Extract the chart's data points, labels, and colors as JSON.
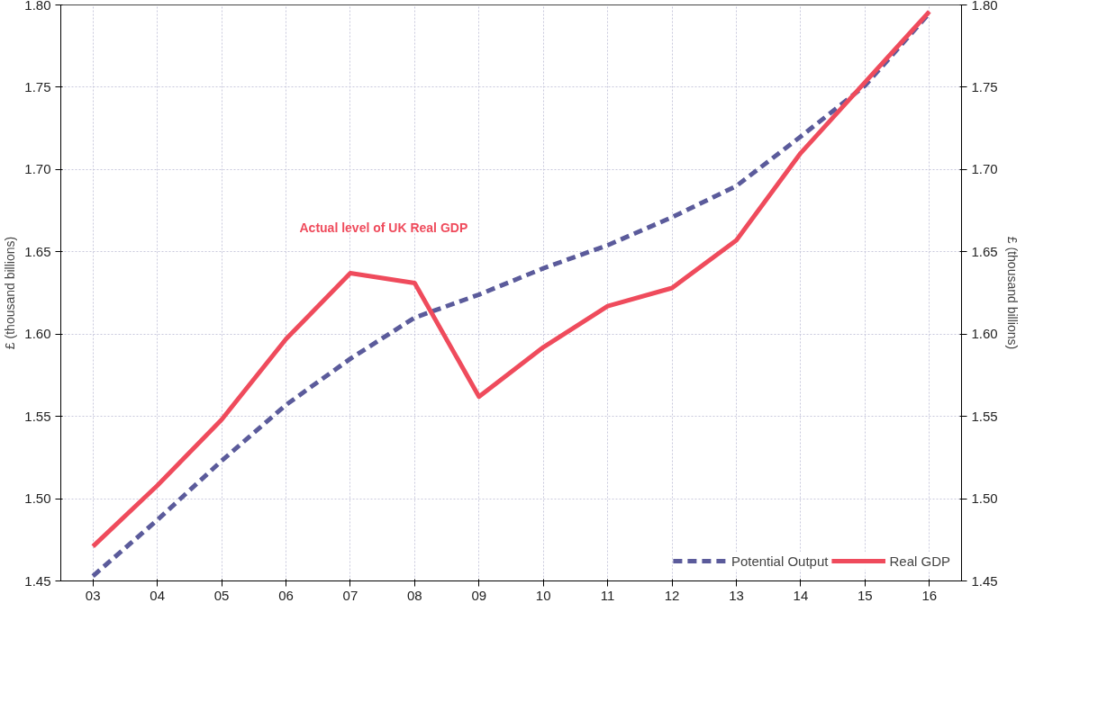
{
  "chart_data": {
    "type": "line",
    "ylabel": "£ (thousand billions)",
    "y2label": "£ (thousand billions)",
    "categories": [
      "03",
      "04",
      "05",
      "06",
      "07",
      "08",
      "09",
      "10",
      "11",
      "12",
      "13",
      "14",
      "15",
      "16"
    ],
    "series": [
      {
        "name": "Potential Output",
        "color": "#5b5b9b",
        "line_style": "dashed",
        "values": [
          1.453,
          1.487,
          1.523,
          1.557,
          1.585,
          1.61,
          1.624,
          1.64,
          1.654,
          1.671,
          1.69,
          1.72,
          1.751,
          1.795
        ]
      },
      {
        "name": "Real GDP",
        "color": "#ef4b5c",
        "line_style": "solid",
        "values": [
          1.471,
          1.508,
          1.548,
          1.597,
          1.637,
          1.631,
          1.562,
          1.592,
          1.617,
          1.628,
          1.657,
          1.71,
          1.753,
          1.796
        ]
      }
    ],
    "ylim": [
      1.45,
      1.8
    ],
    "yticks": [
      1.45,
      {
        "value": 1.5,
        "label": "1.50"
      },
      1.55,
      {
        "value": 1.6,
        "label": "1.60"
      },
      1.65,
      {
        "value": 1.7,
        "label": "1.70"
      },
      1.75,
      {
        "value": 1.8,
        "label": "1.80"
      }
    ],
    "y2lim": [
      1.45,
      1.8
    ],
    "y2ticks": [
      1.45,
      {
        "value": 1.5,
        "label": "1.50"
      },
      1.55,
      {
        "value": 1.6,
        "label": "1.60"
      },
      1.65,
      {
        "value": 1.7,
        "label": "1.70"
      },
      1.75,
      {
        "value": 1.8,
        "label": "1.80"
      }
    ],
    "annotations": [
      "Actual level of UK Real GDP"
    ],
    "grid": true,
    "legend": "bottom right",
    "marker": "none"
  }
}
